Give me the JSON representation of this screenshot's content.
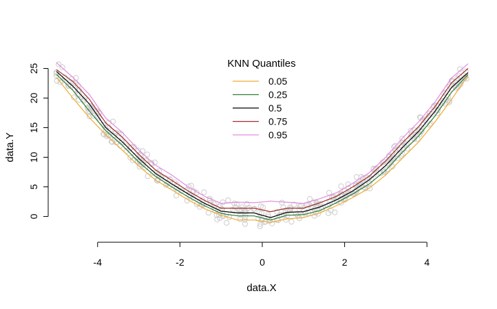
{
  "chart_data": {
    "type": "line",
    "title": "",
    "xlabel": "data.X",
    "ylabel": "data.Y",
    "xlim": [
      -5.2,
      5.2
    ],
    "ylim": [
      -1.8,
      26.8
    ],
    "x_ticks": [
      -4,
      -2,
      0,
      2,
      4
    ],
    "y_ticks": [
      0,
      5,
      10,
      15,
      20,
      25
    ],
    "x_tick_labels": [
      "-4",
      "-2",
      "0",
      "2",
      "4"
    ],
    "y_tick_labels": [
      "0",
      "5",
      "10",
      "15",
      "20",
      "25"
    ],
    "grid": false,
    "legend": {
      "title": "KNN Quantiles",
      "position": "top-center",
      "entries": [
        "0.05",
        "0.25",
        "0.5",
        "0.75",
        "0.95"
      ]
    },
    "scatter_color": "#cccccc",
    "series": [
      {
        "name": "0.05",
        "color": "#f0a830",
        "x": [
          -5,
          -4.6,
          -4.2,
          -3.8,
          -3.4,
          -3,
          -2.6,
          -2.2,
          -1.8,
          -1.4,
          -1,
          -0.6,
          -0.2,
          0.2,
          0.6,
          1,
          1.4,
          1.8,
          2.2,
          2.6,
          3,
          3.4,
          3.8,
          4.2,
          4.6,
          5
        ],
        "y": [
          23.5,
          20,
          16.7,
          13.8,
          11.2,
          8.5,
          6.2,
          4.5,
          2.8,
          1.3,
          0.2,
          -0.6,
          -0.6,
          -1.0,
          -0.4,
          -0.2,
          0.6,
          1.8,
          3.2,
          4.8,
          7.0,
          9.8,
          12.6,
          16,
          19.8,
          23.8
        ]
      },
      {
        "name": "0.25",
        "color": "#2e7d32",
        "x": [
          -5,
          -4.6,
          -4.2,
          -3.8,
          -3.4,
          -3,
          -2.6,
          -2.2,
          -1.8,
          -1.4,
          -1,
          -0.6,
          -0.2,
          0.2,
          0.6,
          1,
          1.4,
          1.8,
          2.2,
          2.6,
          3,
          3.4,
          3.8,
          4.2,
          4.6,
          5
        ],
        "y": [
          24,
          21.3,
          17.8,
          14.5,
          12,
          9.2,
          6.8,
          5,
          3.3,
          1.8,
          0.5,
          0.1,
          0.1,
          -0.6,
          0.2,
          0.3,
          1.0,
          2.3,
          3.8,
          5.5,
          7.8,
          10.8,
          13.6,
          17,
          21,
          24
        ]
      },
      {
        "name": "0.5",
        "color": "#000000",
        "x": [
          -5,
          -4.6,
          -4.2,
          -3.8,
          -3.4,
          -3,
          -2.6,
          -2.2,
          -1.8,
          -1.4,
          -1,
          -0.6,
          -0.2,
          0.2,
          0.6,
          1,
          1.4,
          1.8,
          2.2,
          2.6,
          3,
          3.4,
          3.8,
          4.2,
          4.6,
          5
        ],
        "y": [
          24.5,
          22,
          19,
          15,
          12.6,
          9.8,
          7.3,
          5.5,
          3.8,
          2.2,
          0.9,
          0.6,
          0.6,
          -0.2,
          0.7,
          0.8,
          1.6,
          2.8,
          4.3,
          6.2,
          8.6,
          11.6,
          14.4,
          17.8,
          21.8,
          24.3
        ]
      },
      {
        "name": "0.75",
        "color": "#a52a2a",
        "x": [
          -5,
          -4.6,
          -4.2,
          -3.8,
          -3.4,
          -3,
          -2.6,
          -2.2,
          -1.8,
          -1.4,
          -1,
          -0.6,
          -0.2,
          0.2,
          0.6,
          1,
          1.4,
          1.8,
          2.2,
          2.6,
          3,
          3.4,
          3.8,
          4.2,
          4.6,
          5
        ],
        "y": [
          24.8,
          22.8,
          19.8,
          15.8,
          13.4,
          10.5,
          7.9,
          6.1,
          4.3,
          2.7,
          1.4,
          1.4,
          1.4,
          0.8,
          1.4,
          1.4,
          2.3,
          3.4,
          5.0,
          6.8,
          9.4,
          12.4,
          15.2,
          18.6,
          22.6,
          25
        ]
      },
      {
        "name": "0.95",
        "color": "#e08ae0",
        "x": [
          -5,
          -4.6,
          -4.2,
          -3.8,
          -3.4,
          -3,
          -2.6,
          -2.2,
          -1.8,
          -1.4,
          -1,
          -0.6,
          -0.2,
          0.2,
          0.6,
          1,
          1.4,
          1.8,
          2.2,
          2.6,
          3,
          3.4,
          3.8,
          4.2,
          4.6,
          5
        ],
        "y": [
          26,
          23.5,
          20.6,
          16.6,
          14.2,
          11.2,
          8.7,
          7.0,
          5.0,
          3.4,
          2.2,
          2.4,
          2.3,
          2.6,
          2.4,
          2.2,
          3.0,
          4.0,
          5.6,
          7.4,
          10.0,
          13.2,
          16.0,
          19.4,
          23.4,
          25.8
        ]
      }
    ]
  }
}
